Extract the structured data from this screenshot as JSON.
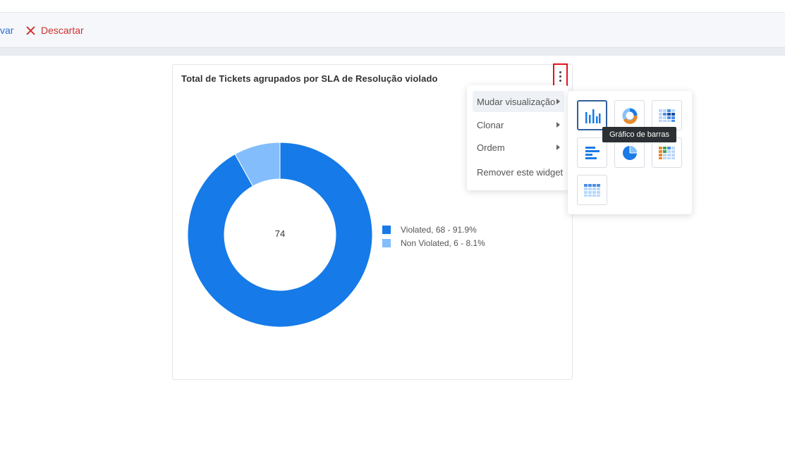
{
  "toolbar": {
    "save_label": "var",
    "discard_label": "Descartar",
    "discard_color": "#d0312d"
  },
  "widget": {
    "title": "Total de Tickets agrupados por SLA de Resolução violado"
  },
  "chart_data": {
    "type": "pie",
    "donut": true,
    "center_label": "74",
    "slices": [
      {
        "name": "Violated",
        "value": 68,
        "percent": 91.9,
        "color": "#167ae8"
      },
      {
        "name": "Non Violated",
        "value": 6,
        "percent": 8.1,
        "color": "#84bdfb"
      }
    ],
    "legend": [
      "Violated,  68 - 91.9%",
      "Non Violated,  6 - 8.1%"
    ],
    "legend_placement": "right"
  },
  "context_menu": {
    "items": [
      {
        "label": "Mudar visualização",
        "has_submenu": true,
        "active": true
      },
      {
        "label": "Clonar",
        "has_submenu": true,
        "active": false
      },
      {
        "label": "Ordem",
        "has_submenu": true,
        "active": false
      },
      {
        "label": "Remover este widget",
        "has_submenu": false,
        "active": false
      }
    ]
  },
  "visualization_menu": {
    "options": [
      {
        "icon": "bar-chart-icon",
        "selected": true
      },
      {
        "icon": "donut-chart-icon",
        "selected": false
      },
      {
        "icon": "heatmap-table-icon",
        "selected": false
      },
      {
        "icon": "horizontal-bar-chart-icon",
        "selected": false
      },
      {
        "icon": "pie-chart-icon",
        "selected": false
      },
      {
        "icon": "colored-table-icon",
        "selected": false
      },
      {
        "icon": "table-icon",
        "selected": false
      }
    ],
    "tooltip": "Gráfico de barras"
  },
  "colors": {
    "primary": "#167ae8",
    "secondary": "#84bdfb",
    "highlight_border": "#e0141e"
  }
}
